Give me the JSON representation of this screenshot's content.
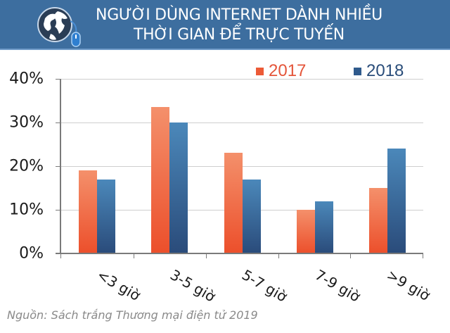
{
  "header": {
    "title_line1": "NGƯỜI DÙNG INTERNET DÀNH NHIỀU",
    "title_line2": "THỜI GIAN ĐỂ TRỰC TUYẾN",
    "icon": "globe-mouse-icon",
    "background_color": "#3d6e9f"
  },
  "legend": [
    {
      "label": "2017",
      "color": "#ec5a36"
    },
    {
      "label": "2018",
      "color": "#2f5a8c"
    }
  ],
  "y_axis": {
    "ticks": [
      "40%",
      "30%",
      "20%",
      "10%",
      "0%"
    ]
  },
  "x_axis": {
    "categories": [
      "<3 giờ",
      "3-5 giờ",
      "5-7 giờ",
      "7-9 giờ",
      ">9 giờ"
    ]
  },
  "source": "Nguồn: Sách trắng Thương mại điện tử 2019",
  "chart_data": {
    "type": "bar",
    "title": "NGƯỜI DÙNG INTERNET DÀNH NHIỀU THỜI GIAN ĐỂ TRỰC TUYẾN",
    "categories": [
      "<3 giờ",
      "3-5 giờ",
      "5-7 giờ",
      "7-9 giờ",
      ">9 giờ"
    ],
    "series": [
      {
        "name": "2017",
        "values": [
          19,
          33.5,
          23,
          10,
          15
        ],
        "color": "#ec5a36"
      },
      {
        "name": "2018",
        "values": [
          17,
          30,
          17,
          12,
          24
        ],
        "color": "#2f5a8c"
      }
    ],
    "xlabel": "",
    "ylabel": "",
    "ylim": [
      0,
      40
    ],
    "yticks": [
      0,
      10,
      20,
      30,
      40
    ],
    "ytick_format": "percent",
    "grid": true,
    "legend_position": "top-right",
    "source": "Nguồn: Sách trắng Thương mại điện tử 2019"
  }
}
